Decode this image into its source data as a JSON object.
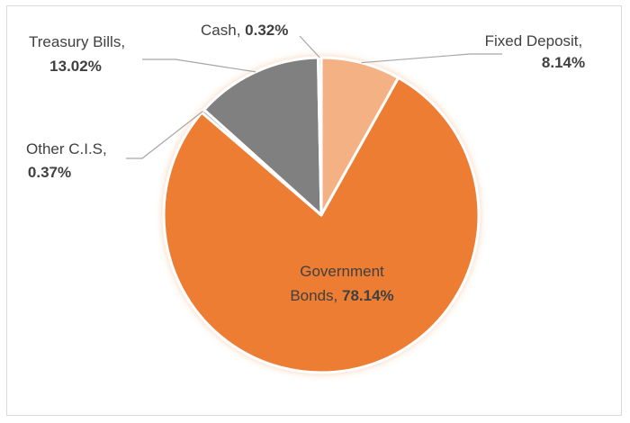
{
  "chart_data": {
    "type": "pie",
    "title": "",
    "slices": [
      {
        "name": "Fixed Deposit",
        "value": 8.14,
        "label": "8.14%",
        "color": "#F4B183"
      },
      {
        "name": "Government Bonds",
        "value": 78.14,
        "label": "78.14%",
        "color": "#ED7D31"
      },
      {
        "name": "Other C.I.S",
        "value": 0.37,
        "label": "0.37%",
        "color": "#A5A5A5"
      },
      {
        "name": "Treasury Bills",
        "value": 13.02,
        "label": "13.02%",
        "color": "#808080"
      },
      {
        "name": "Cash",
        "value": 0.32,
        "label": "0.32%",
        "color": "#C9C9C9"
      }
    ],
    "start_angle_deg": 0,
    "direction": "clockwise",
    "legend": "none",
    "leader_line_color": "#A6A6A6"
  }
}
